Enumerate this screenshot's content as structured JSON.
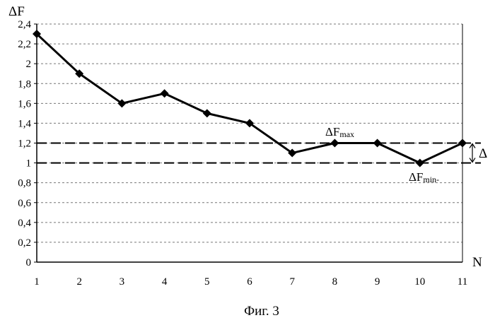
{
  "chart_data": {
    "type": "line",
    "ylabel": "ΔF",
    "xlabel": "N",
    "caption": "Фиг. 3",
    "x": [
      1,
      2,
      3,
      4,
      5,
      6,
      7,
      8,
      9,
      10,
      11
    ],
    "series": [
      {
        "values": [
          2.3,
          1.9,
          1.6,
          1.7,
          1.5,
          1.4,
          1.1,
          1.2,
          1.2,
          1.0,
          1.2
        ]
      }
    ],
    "xlim": [
      1,
      11
    ],
    "ylim": [
      0,
      2.4
    ],
    "ytick_step": 0.2,
    "xtick_labels": [
      "1",
      "2",
      "3",
      "4",
      "5",
      "6",
      "7",
      "8",
      "9",
      "10",
      "11"
    ],
    "ytick_labels": [
      "0",
      "0,2",
      "0,4",
      "0,6",
      "0,8",
      "1",
      "1,2",
      "1,4",
      "1,6",
      "1,8",
      "2",
      "2,2",
      "2,4"
    ],
    "grid": "horizontal-dashed",
    "reference_lines": [
      {
        "y": 1.2,
        "label_main": "ΔF",
        "label_sub": "max",
        "style": "long-dash"
      },
      {
        "y": 1.0,
        "label_main": "ΔF",
        "label_sub": "min-",
        "style": "long-dash"
      }
    ],
    "delta_label": "Δ",
    "marker": "diamond",
    "line_color": "#000000"
  }
}
